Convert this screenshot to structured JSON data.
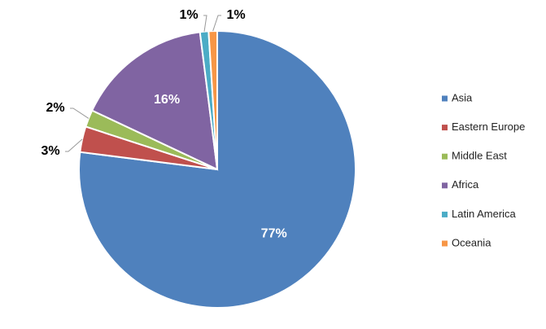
{
  "chart_data": {
    "type": "pie",
    "categories": [
      "Asia",
      "Eastern Europe",
      "Middle East",
      "Africa",
      "Latin America",
      "Oceania"
    ],
    "values": [
      77,
      3,
      2,
      16,
      1,
      1
    ],
    "value_labels": [
      "77%",
      "3%",
      "2%",
      "16%",
      "1%",
      "1%"
    ],
    "colors": [
      "#4f81bd",
      "#c0504d",
      "#9bbb59",
      "#8064a2",
      "#4bacc6",
      "#f79646"
    ],
    "legend": "right"
  }
}
